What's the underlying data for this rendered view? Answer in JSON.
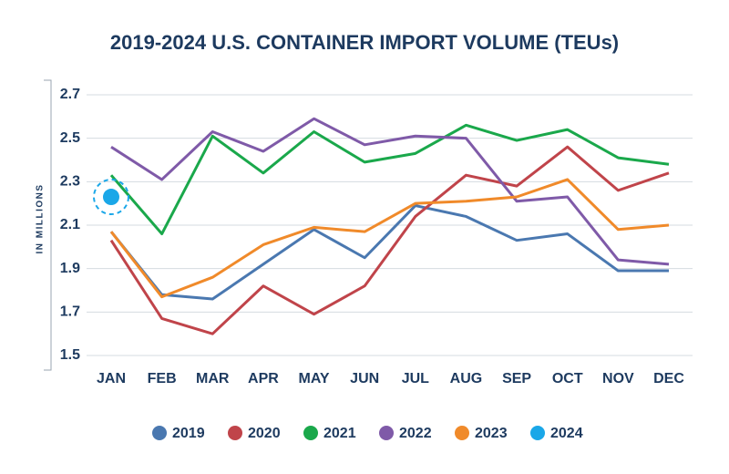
{
  "chart_data": {
    "type": "line",
    "title": "2019-2024 U.S. CONTAINER IMPORT VOLUME (TEUs)",
    "y_label": "IN MILLIONS",
    "categories": [
      "JAN",
      "FEB",
      "MAR",
      "APR",
      "MAY",
      "JUN",
      "JUL",
      "AUG",
      "SEP",
      "OCT",
      "NOV",
      "DEC"
    ],
    "ylim": [
      1.5,
      2.7
    ],
    "yticks": [
      1.5,
      1.7,
      1.9,
      2.1,
      2.3,
      2.5,
      2.7
    ],
    "grid": true,
    "legend": "bottom",
    "series": [
      {
        "name": "2019",
        "color": "#4a78b0",
        "values": [
          2.07,
          1.78,
          1.76,
          1.92,
          2.08,
          1.95,
          2.19,
          2.14,
          2.03,
          2.06,
          1.89,
          1.89
        ]
      },
      {
        "name": "2020",
        "color": "#c0444a",
        "values": [
          2.03,
          1.67,
          1.6,
          1.82,
          1.69,
          1.82,
          2.14,
          2.33,
          2.28,
          2.46,
          2.26,
          2.34
        ]
      },
      {
        "name": "2021",
        "color": "#1aa84b",
        "values": [
          2.33,
          2.06,
          2.51,
          2.34,
          2.53,
          2.39,
          2.43,
          2.56,
          2.49,
          2.54,
          2.41,
          2.38
        ]
      },
      {
        "name": "2022",
        "color": "#7f5aa8",
        "values": [
          2.46,
          2.31,
          2.53,
          2.44,
          2.59,
          2.47,
          2.51,
          2.5,
          2.21,
          2.23,
          1.94,
          1.92
        ]
      },
      {
        "name": "2023",
        "color": "#f08a2a",
        "values": [
          2.07,
          1.77,
          1.86,
          2.01,
          2.09,
          2.07,
          2.2,
          2.21,
          2.23,
          2.31,
          2.08,
          2.1
        ]
      },
      {
        "name": "2024",
        "color": "#1aa7e8",
        "values": [
          2.23,
          null,
          null,
          null,
          null,
          null,
          null,
          null,
          null,
          null,
          null,
          null
        ]
      }
    ]
  }
}
